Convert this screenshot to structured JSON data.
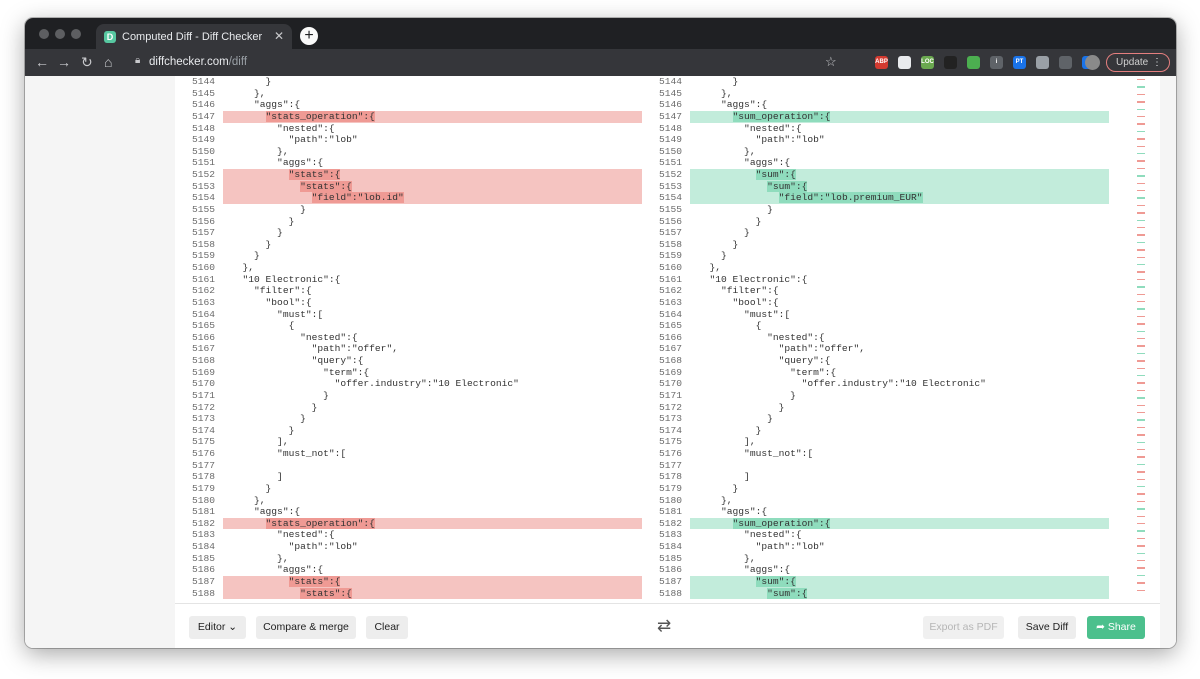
{
  "browser": {
    "tab_title": "Computed Diff - Diff Checker",
    "tab_favicon": "D",
    "url_domain": "diffchecker.com",
    "url_path": "/diff",
    "update_label": "Update",
    "extensions": [
      {
        "label": "ABP",
        "color": "#d33a30"
      },
      {
        "label": "",
        "color": "#e8eaed"
      },
      {
        "label": "LOC",
        "color": "#6aa84f"
      },
      {
        "label": "",
        "color": "#222222"
      },
      {
        "label": "",
        "color": "#4caf50"
      },
      {
        "label": "i",
        "color": "#5f6368"
      },
      {
        "label": "PT",
        "color": "#1a73e8"
      },
      {
        "label": "",
        "color": "#9aa0a6"
      },
      {
        "label": "",
        "color": "#5f6368"
      },
      {
        "label": "",
        "color": "#1a73e8"
      }
    ]
  },
  "diff": {
    "left": [
      {
        "n": "5144",
        "t": "      }",
        "type": ""
      },
      {
        "n": "5145",
        "t": "    },",
        "type": ""
      },
      {
        "n": "5146",
        "t": "    \"aggs\":{",
        "type": ""
      },
      {
        "n": "5147",
        "t": "      ",
        "hl": "\"stats_operation\":{",
        "type": "removed"
      },
      {
        "n": "5148",
        "t": "        \"nested\":{",
        "type": ""
      },
      {
        "n": "5149",
        "t": "          \"path\":\"lob\"",
        "type": ""
      },
      {
        "n": "5150",
        "t": "        },",
        "type": ""
      },
      {
        "n": "5151",
        "t": "        \"aggs\":{",
        "type": ""
      },
      {
        "n": "5152",
        "t": "          ",
        "hl": "\"stats\":{",
        "type": "removed"
      },
      {
        "n": "5153",
        "t": "            ",
        "hl": "\"stats\":{",
        "type": "removed"
      },
      {
        "n": "5154",
        "t": "              ",
        "hl": "\"field\":\"lob.id\"",
        "type": "removed"
      },
      {
        "n": "5155",
        "t": "            }",
        "type": ""
      },
      {
        "n": "5156",
        "t": "          }",
        "type": ""
      },
      {
        "n": "5157",
        "t": "        }",
        "type": ""
      },
      {
        "n": "5158",
        "t": "      }",
        "type": ""
      },
      {
        "n": "5159",
        "t": "    }",
        "type": ""
      },
      {
        "n": "5160",
        "t": "  },",
        "type": ""
      },
      {
        "n": "5161",
        "t": "  \"10 Electronic\":{",
        "type": ""
      },
      {
        "n": "5162",
        "t": "    \"filter\":{",
        "type": ""
      },
      {
        "n": "5163",
        "t": "      \"bool\":{",
        "type": ""
      },
      {
        "n": "5164",
        "t": "        \"must\":[",
        "type": ""
      },
      {
        "n": "5165",
        "t": "          {",
        "type": ""
      },
      {
        "n": "5166",
        "t": "            \"nested\":{",
        "type": ""
      },
      {
        "n": "5167",
        "t": "              \"path\":\"offer\",",
        "type": ""
      },
      {
        "n": "5168",
        "t": "              \"query\":{",
        "type": ""
      },
      {
        "n": "5169",
        "t": "                \"term\":{",
        "type": ""
      },
      {
        "n": "5170",
        "t": "                  \"offer.industry\":\"10 Electronic\"",
        "type": ""
      },
      {
        "n": "5171",
        "t": "                }",
        "type": ""
      },
      {
        "n": "5172",
        "t": "              }",
        "type": ""
      },
      {
        "n": "5173",
        "t": "            }",
        "type": ""
      },
      {
        "n": "5174",
        "t": "          }",
        "type": ""
      },
      {
        "n": "5175",
        "t": "        ],",
        "type": ""
      },
      {
        "n": "5176",
        "t": "        \"must_not\":[",
        "type": ""
      },
      {
        "n": "5177",
        "t": "",
        "type": ""
      },
      {
        "n": "5178",
        "t": "        ]",
        "type": ""
      },
      {
        "n": "5179",
        "t": "      }",
        "type": ""
      },
      {
        "n": "5180",
        "t": "    },",
        "type": ""
      },
      {
        "n": "5181",
        "t": "    \"aggs\":{",
        "type": ""
      },
      {
        "n": "5182",
        "t": "      ",
        "hl": "\"stats_operation\":{",
        "type": "removed"
      },
      {
        "n": "5183",
        "t": "        \"nested\":{",
        "type": ""
      },
      {
        "n": "5184",
        "t": "          \"path\":\"lob\"",
        "type": ""
      },
      {
        "n": "5185",
        "t": "        },",
        "type": ""
      },
      {
        "n": "5186",
        "t": "        \"aggs\":{",
        "type": ""
      },
      {
        "n": "5187",
        "t": "          ",
        "hl": "\"stats\":{",
        "type": "removed"
      },
      {
        "n": "5188",
        "t": "            ",
        "hl": "\"stats\":{",
        "type": "removed"
      }
    ],
    "right": [
      {
        "n": "5144",
        "t": "      }",
        "type": ""
      },
      {
        "n": "5145",
        "t": "    },",
        "type": ""
      },
      {
        "n": "5146",
        "t": "    \"aggs\":{",
        "type": ""
      },
      {
        "n": "5147",
        "t": "      ",
        "hl": "\"sum_operation\":{",
        "type": "added"
      },
      {
        "n": "5148",
        "t": "        \"nested\":{",
        "type": ""
      },
      {
        "n": "5149",
        "t": "          \"path\":\"lob\"",
        "type": ""
      },
      {
        "n": "5150",
        "t": "        },",
        "type": ""
      },
      {
        "n": "5151",
        "t": "        \"aggs\":{",
        "type": ""
      },
      {
        "n": "5152",
        "t": "          ",
        "hl": "\"sum\":{",
        "type": "added"
      },
      {
        "n": "5153",
        "t": "            ",
        "hl": "\"sum\":{",
        "type": "added"
      },
      {
        "n": "5154",
        "t": "              ",
        "hl": "\"field\":\"lob.premium_EUR\"",
        "type": "added"
      },
      {
        "n": "5155",
        "t": "            }",
        "type": ""
      },
      {
        "n": "5156",
        "t": "          }",
        "type": ""
      },
      {
        "n": "5157",
        "t": "        }",
        "type": ""
      },
      {
        "n": "5158",
        "t": "      }",
        "type": ""
      },
      {
        "n": "5159",
        "t": "    }",
        "type": ""
      },
      {
        "n": "5160",
        "t": "  },",
        "type": ""
      },
      {
        "n": "5161",
        "t": "  \"10 Electronic\":{",
        "type": ""
      },
      {
        "n": "5162",
        "t": "    \"filter\":{",
        "type": ""
      },
      {
        "n": "5163",
        "t": "      \"bool\":{",
        "type": ""
      },
      {
        "n": "5164",
        "t": "        \"must\":[",
        "type": ""
      },
      {
        "n": "5165",
        "t": "          {",
        "type": ""
      },
      {
        "n": "5166",
        "t": "            \"nested\":{",
        "type": ""
      },
      {
        "n": "5167",
        "t": "              \"path\":\"offer\",",
        "type": ""
      },
      {
        "n": "5168",
        "t": "              \"query\":{",
        "type": ""
      },
      {
        "n": "5169",
        "t": "                \"term\":{",
        "type": ""
      },
      {
        "n": "5170",
        "t": "                  \"offer.industry\":\"10 Electronic\"",
        "type": ""
      },
      {
        "n": "5171",
        "t": "                }",
        "type": ""
      },
      {
        "n": "5172",
        "t": "              }",
        "type": ""
      },
      {
        "n": "5173",
        "t": "            }",
        "type": ""
      },
      {
        "n": "5174",
        "t": "          }",
        "type": ""
      },
      {
        "n": "5175",
        "t": "        ],",
        "type": ""
      },
      {
        "n": "5176",
        "t": "        \"must_not\":[",
        "type": ""
      },
      {
        "n": "5177",
        "t": "",
        "type": ""
      },
      {
        "n": "5178",
        "t": "        ]",
        "type": ""
      },
      {
        "n": "5179",
        "t": "      }",
        "type": ""
      },
      {
        "n": "5180",
        "t": "    },",
        "type": ""
      },
      {
        "n": "5181",
        "t": "    \"aggs\":{",
        "type": ""
      },
      {
        "n": "5182",
        "t": "      ",
        "hl": "\"sum_operation\":{",
        "type": "added"
      },
      {
        "n": "5183",
        "t": "        \"nested\":{",
        "type": ""
      },
      {
        "n": "5184",
        "t": "          \"path\":\"lob\"",
        "type": ""
      },
      {
        "n": "5185",
        "t": "        },",
        "type": ""
      },
      {
        "n": "5186",
        "t": "        \"aggs\":{",
        "type": ""
      },
      {
        "n": "5187",
        "t": "          ",
        "hl": "\"sum\":{",
        "type": "added"
      },
      {
        "n": "5188",
        "t": "            ",
        "hl": "\"sum\":{",
        "type": "added"
      }
    ]
  },
  "footer": {
    "editor_label": "Editor",
    "compare_label": "Compare & merge",
    "clear_label": "Clear",
    "export_label": "Export as PDF",
    "save_label": "Save Diff",
    "share_label": "Share"
  },
  "colors": {
    "removed_line": "#f5c4c1",
    "removed_highlight": "#ef9a94",
    "added_line": "#c2ecdb",
    "added_highlight": "#8fdcbd",
    "share_button": "#4cc08d"
  }
}
